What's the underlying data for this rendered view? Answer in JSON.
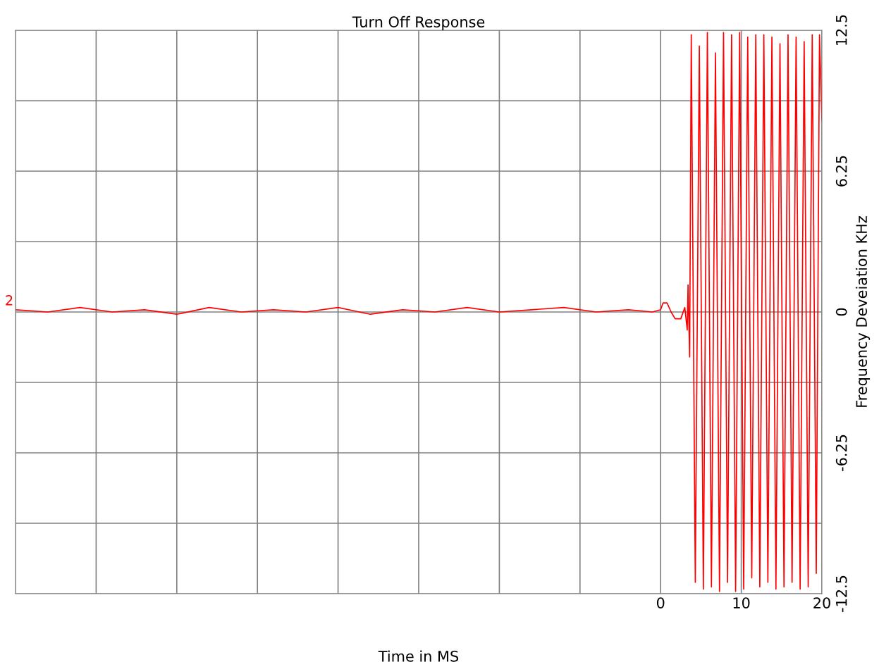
{
  "chart_data": {
    "type": "line",
    "title": "Turn Off Response",
    "xlabel": "Time in MS",
    "ylabel": "Frequency Deveiation KHz",
    "xlim": [
      -80,
      20
    ],
    "xticks": [
      {
        "value": -80,
        "label": null
      },
      {
        "value": -70,
        "label": null
      },
      {
        "value": -60,
        "label": null
      },
      {
        "value": -50,
        "label": null
      },
      {
        "value": -40,
        "label": null
      },
      {
        "value": -30,
        "label": null
      },
      {
        "value": -20,
        "label": null
      },
      {
        "value": -10,
        "label": null
      },
      0,
      10,
      20
    ],
    "ylim": [
      -12.5,
      12.5
    ],
    "yticks": [
      -12.5,
      {
        "value": -9.375,
        "label": null
      },
      -6.25,
      {
        "value": -3.125,
        "label": null
      },
      0,
      {
        "value": 3.125,
        "label": null
      },
      6.25,
      {
        "value": 9.375,
        "label": null
      },
      12.5
    ],
    "grid": true,
    "legend": false,
    "marker": "none",
    "line_style": "solid",
    "annotations": [
      {
        "text": "2",
        "x": -80,
        "y": 0
      }
    ],
    "series": [
      {
        "color": "#ff0000",
        "x": [
          -80,
          -76,
          -72,
          -68,
          -64,
          -60,
          -56,
          -52,
          -48,
          -44,
          -40,
          -36,
          -32,
          -28,
          -24,
          -20,
          -16,
          -12,
          -8,
          -4,
          -1,
          0,
          0.3,
          0.8,
          1.3,
          1.8,
          2.5,
          3.0,
          3.3,
          3.4,
          3.6,
          3.8,
          4.3,
          4.8,
          5.3,
          5.8,
          6.3,
          6.8,
          7.3,
          7.8,
          8.3,
          8.8,
          9.3,
          9.8,
          10.3,
          10.8,
          11.3,
          11.8,
          12.3,
          12.8,
          13.3,
          13.8,
          14.3,
          14.8,
          15.3,
          15.8,
          16.3,
          16.8,
          17.3,
          17.8,
          18.3,
          18.8,
          19.3,
          19.7,
          20
        ],
        "values": [
          0.1,
          0.0,
          0.2,
          0.0,
          0.1,
          -0.1,
          0.2,
          0.0,
          0.1,
          0.0,
          0.2,
          -0.1,
          0.1,
          0.0,
          0.2,
          0.0,
          0.1,
          0.2,
          0.0,
          0.1,
          0.0,
          0.1,
          0.4,
          0.4,
          0.0,
          -0.3,
          -0.3,
          0.2,
          -0.8,
          1.2,
          -2.0,
          12.3,
          -12.0,
          11.8,
          -12.3,
          12.4,
          -12.2,
          11.5,
          -12.4,
          12.4,
          -12.0,
          12.3,
          -12.4,
          12.4,
          -12.3,
          12.2,
          -11.8,
          12.3,
          -12.2,
          12.3,
          -12.0,
          12.2,
          -12.3,
          11.9,
          -12.2,
          12.3,
          -12.0,
          12.2,
          -12.3,
          12.0,
          -12.2,
          12.3,
          -11.6,
          12.3,
          8.5
        ]
      }
    ]
  }
}
